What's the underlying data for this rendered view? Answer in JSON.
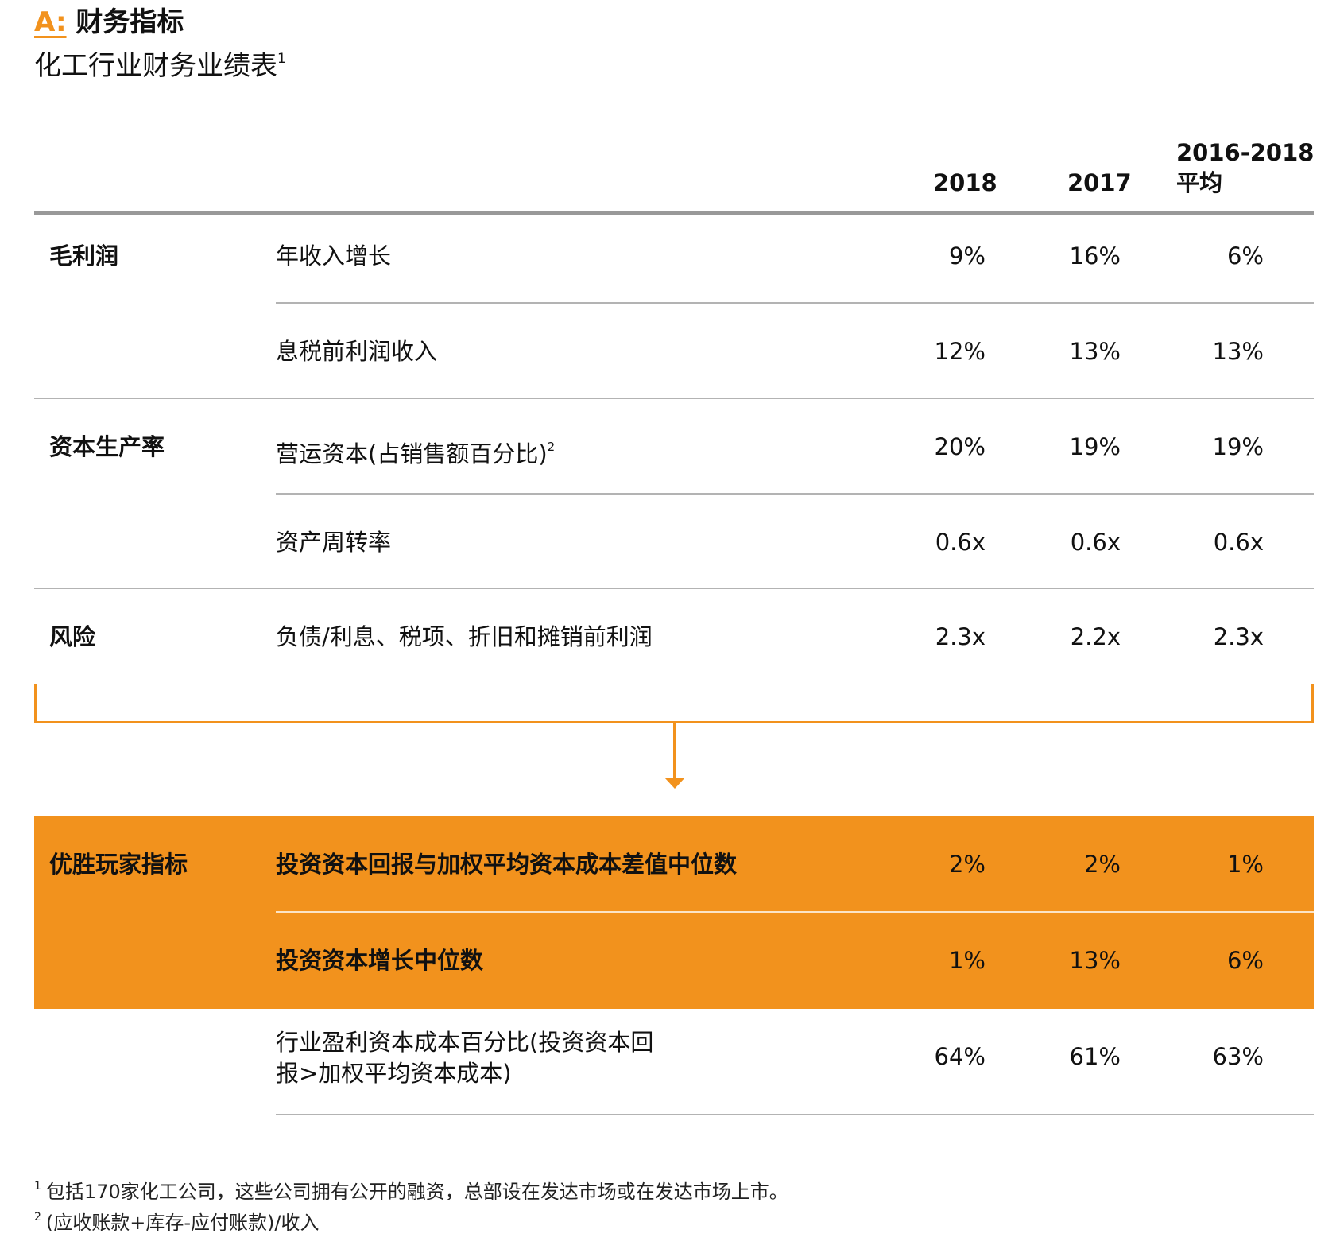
{
  "header": {
    "section_letter": "A:",
    "section_title": "财务指标",
    "subtitle": "化工行业财务业绩表",
    "subtitle_note": "1"
  },
  "columns": {
    "col1": "2018",
    "col2": "2017",
    "col3_line1": "2016-2018",
    "col3_line2": "平均"
  },
  "rows": [
    {
      "category": "毛利润",
      "label": "年收入增长",
      "note": "",
      "v2018": "9%",
      "v2017": "16%",
      "vavg": "6%"
    },
    {
      "category": "",
      "label": "息税前利润收入",
      "note": "",
      "v2018": "12%",
      "v2017": "13%",
      "vavg": "13%"
    },
    {
      "category": "资本生产率",
      "label": "营运资本(占销售额百分比)",
      "note": "2",
      "v2018": "20%",
      "v2017": "19%",
      "vavg": "19%"
    },
    {
      "category": "",
      "label": "资产周转率",
      "note": "",
      "v2018": "0.6x",
      "v2017": "0.6x",
      "vavg": "0.6x"
    },
    {
      "category": "风险",
      "label": "负债/利息、税项、折旧和摊销前利润",
      "note": "",
      "v2018": "2.3x",
      "v2017": "2.2x",
      "vavg": "2.3x"
    }
  ],
  "highlight": {
    "category": "优胜玩家指标",
    "rows": [
      {
        "label": "投资资本回报与加权平均资本成本差值中位数",
        "v2018": "2%",
        "v2017": "2%",
        "vavg": "1%"
      },
      {
        "label": "投资资本增长中位数",
        "v2018": "1%",
        "v2017": "13%",
        "vavg": "6%"
      }
    ]
  },
  "extra_row": {
    "label_line1": "行业盈利资本成本百分比(投资资本回",
    "label_line2": "报>加权平均资本成本)",
    "v2018": "64%",
    "v2017": "61%",
    "vavg": "63%"
  },
  "footnotes": [
    {
      "mark": "1",
      "text": "包括170家化工公司，这些公司拥有公开的融资，总部设在发达市场或在发达市场上市。"
    },
    {
      "mark": "2",
      "text": "(应收账款+库存-应付账款)/收入"
    }
  ],
  "colors": {
    "accent": "#f2921d",
    "rule": "#b3b3b3",
    "header_rule": "#999999"
  }
}
